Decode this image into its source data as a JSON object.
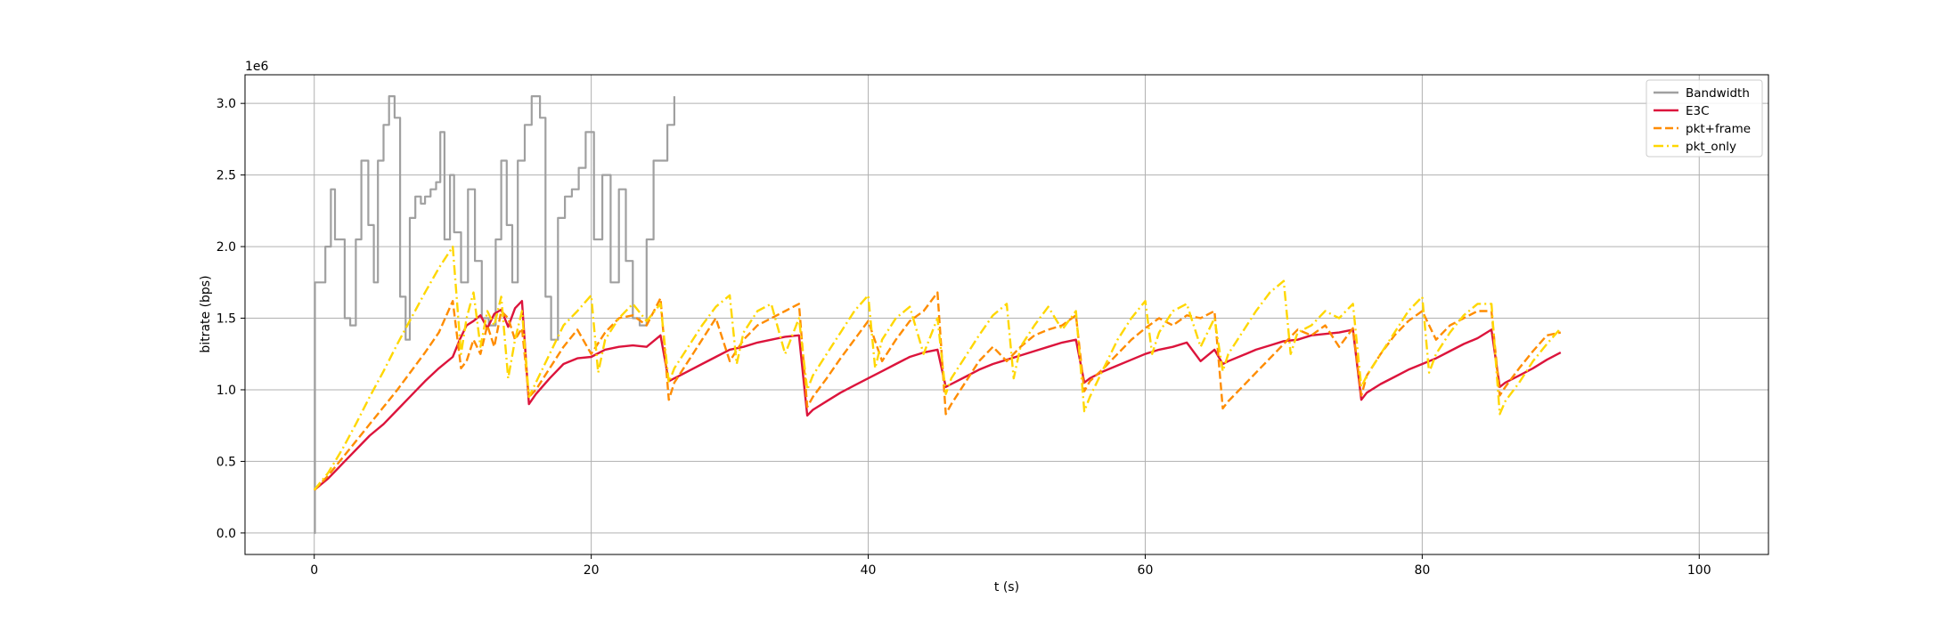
{
  "chart_data": {
    "type": "line",
    "xlabel": "t (s)",
    "ylabel": "bitrate (bps)",
    "y_offset_label": "1e6",
    "xlim": [
      -5,
      105
    ],
    "ylim": [
      -150000.0,
      3200000.0
    ],
    "x_ticks": [
      0,
      20,
      40,
      60,
      80,
      100
    ],
    "x_tick_labels": [
      "0",
      "20",
      "40",
      "60",
      "80",
      "100"
    ],
    "y_ticks": [
      0,
      500000,
      1000000,
      1500000,
      2000000,
      2500000,
      3000000
    ],
    "y_tick_labels": [
      "0.0",
      "0.5",
      "1.0",
      "1.5",
      "2.0",
      "2.5",
      "3.0"
    ],
    "grid": true,
    "legend_position": "top-right",
    "series": [
      {
        "name": "Bandwidth",
        "color": "#a0a0a0",
        "style": "solid",
        "step": true,
        "x": [
          0,
          0.05,
          0.8,
          1.2,
          1.5,
          2.2,
          2.6,
          3.0,
          3.4,
          3.9,
          4.3,
          4.6,
          5.0,
          5.4,
          5.8,
          6.2,
          6.6,
          6.9,
          7.3,
          7.7,
          8.0,
          8.4,
          8.8,
          9.1,
          9.4,
          9.8,
          10.1,
          10.6,
          11.1,
          11.6,
          12.1,
          12.6,
          13.1,
          13.5,
          13.9,
          14.3,
          14.7,
          15.2,
          15.7,
          16.3,
          16.7,
          17.1,
          17.6,
          18.1,
          18.6,
          19.1,
          19.6,
          20.2,
          20.8,
          21.4,
          22.0,
          22.5,
          23.0,
          23.5,
          24.0,
          24.5,
          25.0,
          25.5,
          26.0
        ],
        "y": [
          0,
          1750000,
          2000000,
          2400000,
          2050000,
          1500000,
          1450000,
          2050000,
          2600000,
          2150000,
          1750000,
          2600000,
          2850000,
          3050000,
          2900000,
          1650000,
          1350000,
          2200000,
          2350000,
          2300000,
          2350000,
          2400000,
          2450000,
          2800000,
          2050000,
          2500000,
          2100000,
          1750000,
          2400000,
          1900000,
          1500000,
          1450000,
          2050000,
          2600000,
          2150000,
          1750000,
          2600000,
          2850000,
          3050000,
          2900000,
          1650000,
          1350000,
          2200000,
          2350000,
          2400000,
          2550000,
          2800000,
          2050000,
          2500000,
          1750000,
          2400000,
          1900000,
          1500000,
          1450000,
          2050000,
          2600000,
          2600000,
          2850000,
          3050000
        ]
      },
      {
        "name": "E3C",
        "color": "#dc143c",
        "style": "solid",
        "x": [
          0,
          1,
          2,
          3,
          4,
          5,
          6,
          7,
          8,
          9,
          10,
          10.5,
          11,
          11.5,
          12,
          12.5,
          13,
          13.5,
          14,
          14.5,
          15,
          15.5,
          16,
          17,
          18,
          19,
          20,
          21,
          22,
          23,
          24,
          25,
          25.6,
          26,
          27,
          28,
          29,
          30,
          31,
          32,
          33,
          34,
          35,
          35.6,
          36,
          37,
          38,
          39,
          40,
          41,
          42,
          43,
          44,
          45,
          45.6,
          46,
          47,
          48,
          49,
          50,
          51,
          52,
          53,
          54,
          55,
          55.6,
          56,
          57,
          58,
          59,
          60,
          61,
          62,
          63,
          64,
          65,
          65.6,
          66,
          67,
          68,
          69,
          70,
          71,
          72,
          73,
          74,
          75,
          75.6,
          76,
          77,
          78,
          79,
          80,
          81,
          82,
          83,
          84,
          85,
          85.6,
          86,
          87,
          88,
          89,
          90
        ],
        "y": [
          300000,
          380000,
          480000,
          580000,
          680000,
          760000,
          860000,
          960000,
          1060000,
          1150000,
          1230000,
          1350000,
          1450000,
          1480000,
          1520000,
          1430000,
          1530000,
          1560000,
          1440000,
          1570000,
          1620000,
          900000,
          970000,
          1080000,
          1180000,
          1220000,
          1230000,
          1280000,
          1300000,
          1310000,
          1300000,
          1380000,
          1060000,
          1080000,
          1130000,
          1180000,
          1230000,
          1280000,
          1300000,
          1330000,
          1350000,
          1370000,
          1380000,
          820000,
          860000,
          920000,
          980000,
          1030000,
          1080000,
          1130000,
          1180000,
          1230000,
          1260000,
          1280000,
          1020000,
          1040000,
          1090000,
          1140000,
          1180000,
          1210000,
          1240000,
          1270000,
          1300000,
          1330000,
          1350000,
          1050000,
          1080000,
          1130000,
          1170000,
          1210000,
          1250000,
          1280000,
          1300000,
          1330000,
          1200000,
          1280000,
          1180000,
          1200000,
          1240000,
          1280000,
          1310000,
          1340000,
          1350000,
          1380000,
          1390000,
          1400000,
          1420000,
          930000,
          980000,
          1040000,
          1090000,
          1140000,
          1180000,
          1220000,
          1270000,
          1320000,
          1360000,
          1420000,
          1020000,
          1050000,
          1100000,
          1150000,
          1210000,
          1260000
        ]
      },
      {
        "name": "pkt+frame",
        "color": "#ff8c00",
        "style": "dashed",
        "x": [
          0,
          1,
          2,
          3,
          4,
          5,
          6,
          7,
          8,
          9,
          10,
          10.6,
          11,
          11.5,
          12,
          12.5,
          13,
          13.5,
          14,
          14.5,
          15,
          15.5,
          16,
          17,
          18,
          19,
          20,
          21,
          22,
          23,
          24,
          25,
          25.6,
          26,
          27,
          28,
          29,
          30,
          31,
          32,
          33,
          34,
          35,
          35.6,
          36,
          37,
          38,
          39,
          40,
          41,
          42,
          43,
          44,
          45,
          45.6,
          46,
          47,
          48,
          49,
          50,
          51,
          52,
          53,
          54,
          55,
          55.6,
          56,
          57,
          58,
          59,
          60,
          61,
          62,
          63,
          64,
          65,
          65.6,
          66,
          67,
          68,
          69,
          70,
          71,
          72,
          73,
          74,
          75,
          75.6,
          76,
          77,
          78,
          79,
          80,
          81,
          82,
          83,
          84,
          85,
          85.6,
          86,
          87,
          88,
          89,
          90
        ],
        "y": [
          300000,
          400000,
          520000,
          640000,
          760000,
          880000,
          1000000,
          1130000,
          1260000,
          1400000,
          1620000,
          1150000,
          1200000,
          1350000,
          1250000,
          1450000,
          1300000,
          1550000,
          1500000,
          1350000,
          1430000,
          950000,
          1000000,
          1150000,
          1300000,
          1420000,
          1250000,
          1400000,
          1500000,
          1520000,
          1450000,
          1640000,
          930000,
          1050000,
          1200000,
          1350000,
          1500000,
          1200000,
          1350000,
          1450000,
          1500000,
          1550000,
          1600000,
          880000,
          950000,
          1080000,
          1220000,
          1350000,
          1480000,
          1200000,
          1350000,
          1480000,
          1550000,
          1680000,
          830000,
          900000,
          1050000,
          1200000,
          1300000,
          1200000,
          1300000,
          1380000,
          1420000,
          1450000,
          1520000,
          990000,
          1060000,
          1150000,
          1250000,
          1350000,
          1430000,
          1500000,
          1450000,
          1520000,
          1500000,
          1550000,
          870000,
          920000,
          1020000,
          1120000,
          1220000,
          1320000,
          1420000,
          1380000,
          1450000,
          1300000,
          1430000,
          960000,
          1100000,
          1250000,
          1380000,
          1480000,
          1550000,
          1350000,
          1450000,
          1500000,
          1550000,
          1550000,
          960000,
          1020000,
          1150000,
          1270000,
          1380000,
          1400000
        ]
      },
      {
        "name": "pkt_only",
        "color": "#ffd700",
        "style": "dashdot",
        "x": [
          0,
          1,
          2,
          3,
          4,
          5,
          6,
          7,
          8,
          9,
          10,
          10.6,
          11,
          11.5,
          12,
          12.5,
          13,
          13.5,
          14,
          14.5,
          15,
          15.5,
          16,
          17,
          18,
          19,
          20,
          20.5,
          21,
          22,
          23,
          24,
          25,
          25.6,
          26,
          27,
          28,
          29,
          30,
          30.5,
          31,
          32,
          33,
          34,
          35,
          35.6,
          36,
          37,
          38,
          39,
          40,
          40.5,
          41,
          42,
          43,
          44,
          45,
          45.6,
          46,
          47,
          48,
          49,
          50,
          50.5,
          51,
          52,
          53,
          54,
          55,
          55.6,
          56,
          57,
          58,
          59,
          60,
          60.5,
          61,
          62,
          63,
          64,
          65,
          65.6,
          66,
          67,
          68,
          69,
          70,
          70.5,
          71,
          72,
          73,
          74,
          75,
          75.6,
          76,
          77,
          78,
          79,
          80,
          80.5,
          81,
          82,
          83,
          84,
          85,
          85.6,
          86,
          87,
          88,
          89,
          90
        ],
        "y": [
          300000,
          420000,
          580000,
          760000,
          950000,
          1130000,
          1320000,
          1500000,
          1680000,
          1850000,
          2000000,
          1250000,
          1500000,
          1680000,
          1300000,
          1550000,
          1450000,
          1650000,
          1080000,
          1350000,
          1550000,
          950000,
          1050000,
          1250000,
          1450000,
          1550000,
          1660000,
          1120000,
          1350000,
          1500000,
          1600000,
          1480000,
          1600000,
          1050000,
          1150000,
          1300000,
          1450000,
          1580000,
          1660000,
          1180000,
          1400000,
          1550000,
          1600000,
          1250000,
          1500000,
          1000000,
          1100000,
          1250000,
          1400000,
          1550000,
          1660000,
          1150000,
          1350000,
          1500000,
          1580000,
          1250000,
          1500000,
          970000,
          1080000,
          1230000,
          1380000,
          1520000,
          1600000,
          1080000,
          1300000,
          1450000,
          1580000,
          1420000,
          1550000,
          850000,
          950000,
          1150000,
          1350000,
          1500000,
          1620000,
          1250000,
          1400000,
          1550000,
          1600000,
          1300000,
          1500000,
          1130000,
          1250000,
          1400000,
          1550000,
          1680000,
          1760000,
          1250000,
          1400000,
          1450000,
          1550000,
          1500000,
          1600000,
          1020000,
          1100000,
          1250000,
          1400000,
          1550000,
          1650000,
          1120000,
          1250000,
          1400000,
          1520000,
          1600000,
          1600000,
          830000,
          920000,
          1050000,
          1200000,
          1320000,
          1430000
        ]
      }
    ]
  }
}
